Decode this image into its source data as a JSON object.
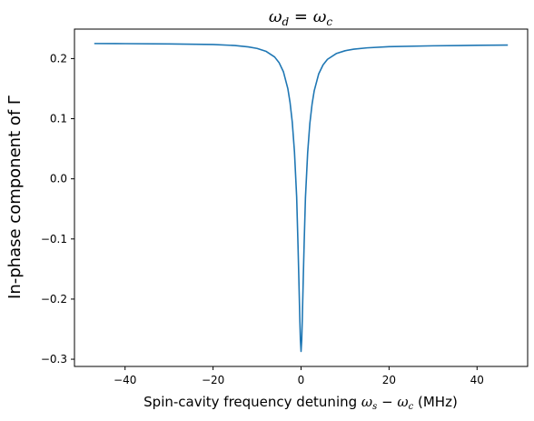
{
  "chart_data": {
    "type": "line",
    "title": "ωd = ωc",
    "xlabel": "Spin-cavity frequency detuning ωs − ωc (MHz)",
    "ylabel": "In-phase component of Γ",
    "xlim": [
      -51.5,
      51.5
    ],
    "ylim": [
      -0.312,
      0.249
    ],
    "xticks": [
      -40,
      -20,
      0,
      20,
      40
    ],
    "xtick_labels": [
      "−40",
      "−20",
      "0",
      "20",
      "40"
    ],
    "yticks": [
      -0.3,
      -0.2,
      -0.1,
      0.0,
      0.1,
      0.2
    ],
    "ytick_labels": [
      "−0.3",
      "−0.2",
      "−0.1",
      "0.0",
      "0.1",
      "0.2"
    ],
    "grid": false,
    "legend": false,
    "series": [
      {
        "color": "#1f77b4",
        "x": [
          -47,
          -40,
          -30,
          -20,
          -15,
          -12,
          -10,
          -8,
          -6,
          -5,
          -4,
          -3,
          -2.5,
          -2,
          -1.5,
          -1,
          -0.7,
          -0.5,
          -0.3,
          -0.15,
          0,
          0.15,
          0.3,
          0.5,
          0.7,
          1,
          1.5,
          2,
          2.5,
          3,
          4,
          5,
          6,
          8,
          10,
          12,
          15,
          20,
          30,
          40,
          47
        ],
        "y": [
          0.225,
          0.2248,
          0.2244,
          0.2234,
          0.2217,
          0.2194,
          0.2169,
          0.2122,
          0.2026,
          0.1933,
          0.1779,
          0.1498,
          0.1268,
          0.0945,
          0.0453,
          -0.0303,
          -0.1085,
          -0.1666,
          -0.2285,
          -0.2683,
          -0.287,
          -0.2683,
          -0.2285,
          -0.1666,
          -0.1085,
          -0.0313,
          0.0435,
          0.0922,
          0.124,
          0.1467,
          0.1743,
          0.1895,
          0.1987,
          0.2083,
          0.213,
          0.2156,
          0.2178,
          0.2198,
          0.2212,
          0.222,
          0.2225
        ]
      }
    ]
  },
  "title_parts": {
    "lhs": "ω",
    "lhs_sub": "d",
    "eq": " = ",
    "rhs": "ω",
    "rhs_sub": "c"
  },
  "xlabel_parts": {
    "pre": "Spin-cavity frequency detuning ",
    "w1": "ω",
    "s1": "s",
    "minus": " − ",
    "w2": "ω",
    "s2": "c",
    "post": " (MHz)"
  },
  "ylabel_text": "In-phase component of Γ"
}
